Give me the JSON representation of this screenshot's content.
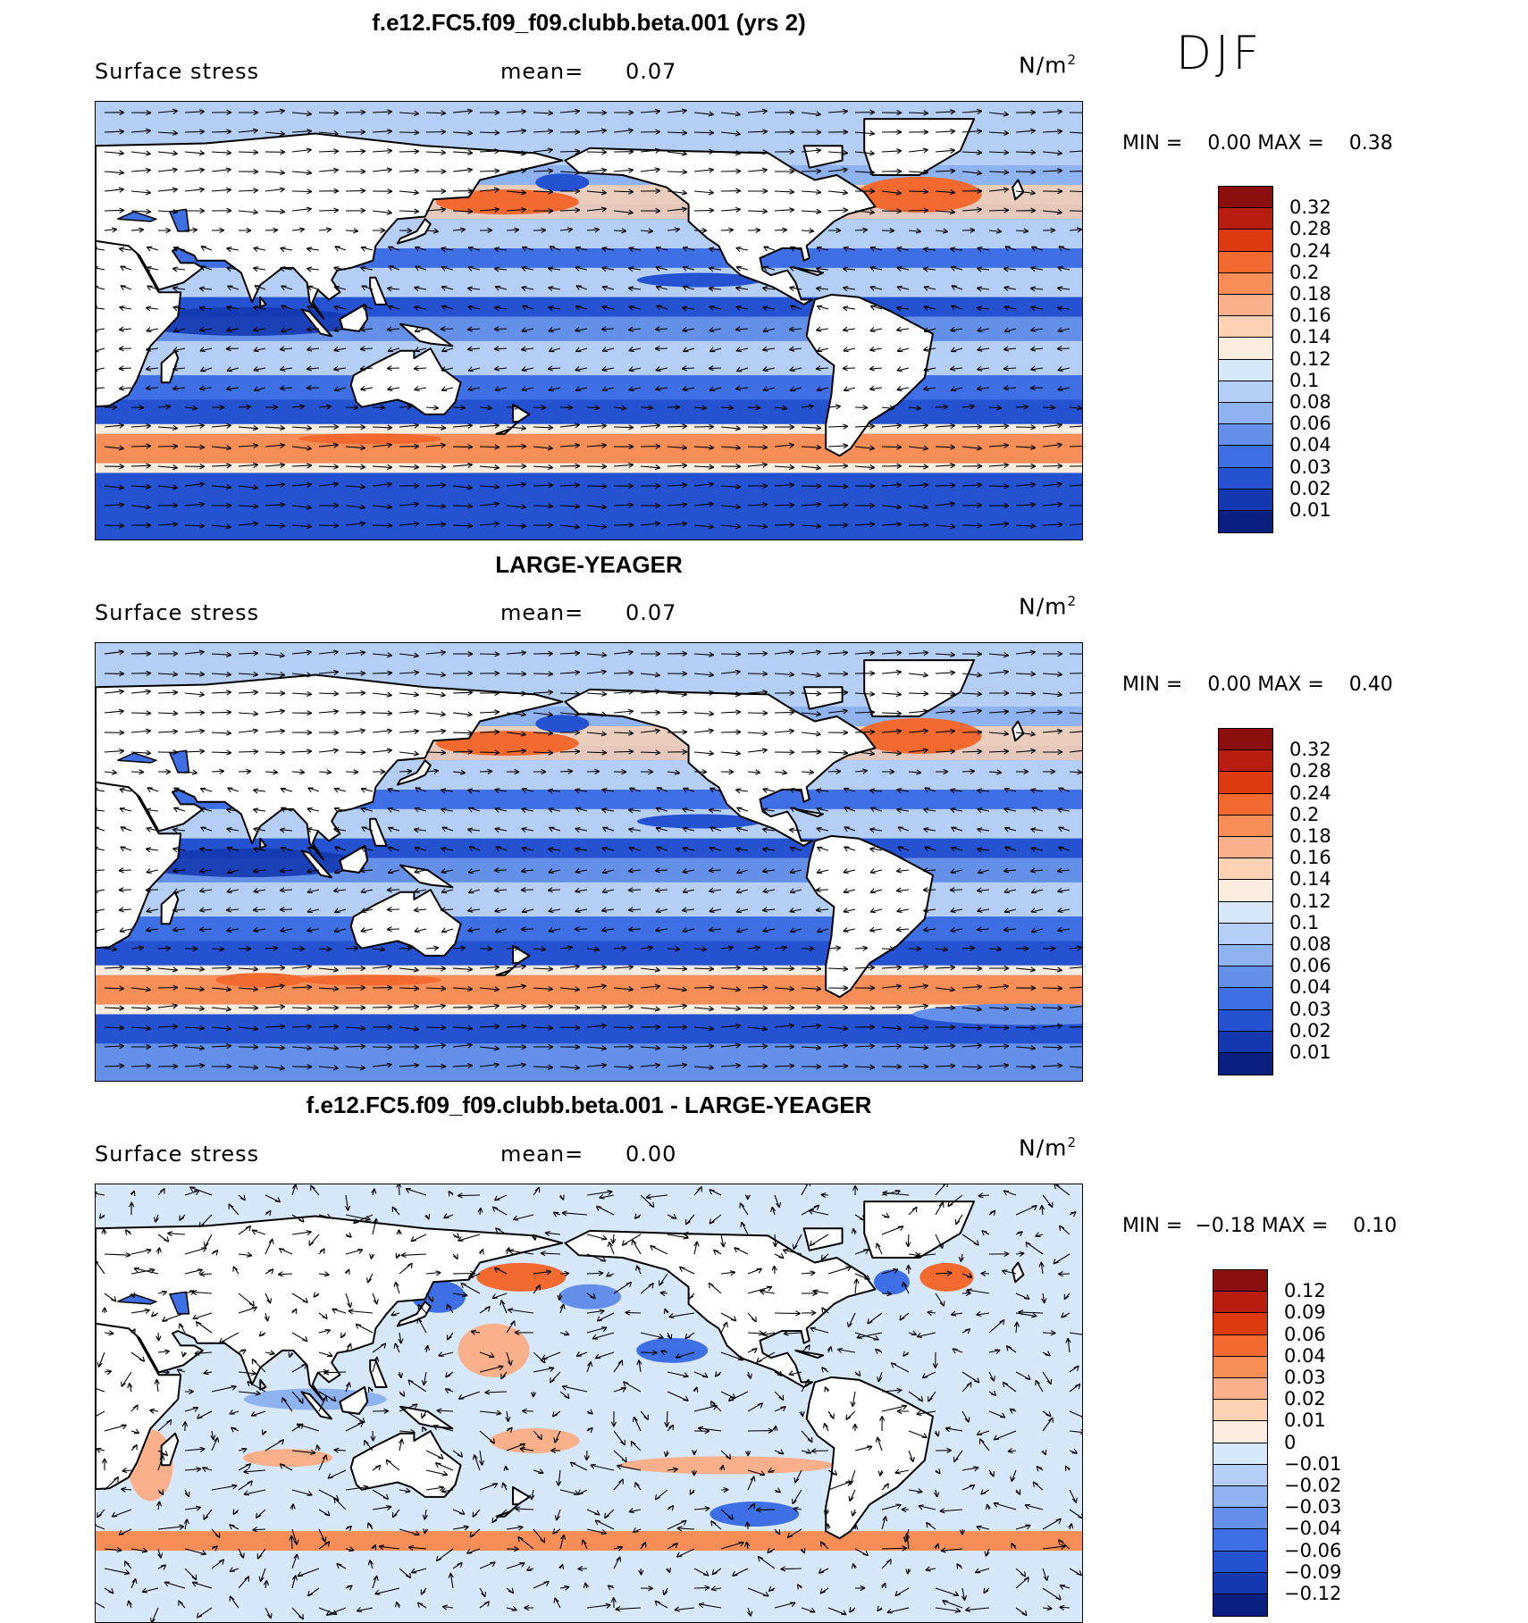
{
  "season": "DJF",
  "panels": [
    {
      "title": "f.e12.FC5.f09_f09.clubb.beta.001 (yrs 2)",
      "variable": "Surface stress",
      "mean_label": "mean=",
      "mean_value": "0.07",
      "units": "N/m",
      "units_sup": "2",
      "minmax": "MIN =    0.00 MAX =    0.38",
      "colorbar_levels": [
        "0.32",
        "0.28",
        "0.24",
        "0.2",
        "0.18",
        "0.16",
        "0.14",
        "0.12",
        "0.1",
        "0.08",
        "0.06",
        "0.04",
        "0.03",
        "0.02",
        "0.01"
      ],
      "colorbar_colors": [
        "#8b0f0f",
        "#b81e10",
        "#de3a10",
        "#f26a30",
        "#f78e58",
        "#fab08a",
        "#fcd1b4",
        "#fbece0",
        "#d8e8fb",
        "#b4cef6",
        "#8fb2f0",
        "#6490ea",
        "#3f6fe4",
        "#2452d0",
        "#1438b0",
        "#0a2080"
      ]
    },
    {
      "title": "LARGE-YEAGER",
      "variable": "Surface stress",
      "mean_label": "mean=",
      "mean_value": "0.07",
      "units": "N/m",
      "units_sup": "2",
      "minmax": "MIN =    0.00 MAX =    0.40",
      "colorbar_levels": [
        "0.32",
        "0.28",
        "0.24",
        "0.2",
        "0.18",
        "0.16",
        "0.14",
        "0.12",
        "0.1",
        "0.08",
        "0.06",
        "0.04",
        "0.03",
        "0.02",
        "0.01"
      ],
      "colorbar_colors": [
        "#8b0f0f",
        "#b81e10",
        "#de3a10",
        "#f26a30",
        "#f78e58",
        "#fab08a",
        "#fcd1b4",
        "#fbece0",
        "#d8e8fb",
        "#b4cef6",
        "#8fb2f0",
        "#6490ea",
        "#3f6fe4",
        "#2452d0",
        "#1438b0",
        "#0a2080"
      ]
    },
    {
      "title": "f.e12.FC5.f09_f09.clubb.beta.001 - LARGE-YEAGER",
      "variable": "Surface stress",
      "mean_label": "mean=",
      "mean_value": "0.00",
      "units": "N/m",
      "units_sup": "2",
      "minmax": "MIN =  −0.18 MAX =    0.10",
      "colorbar_levels": [
        "0.12",
        "0.09",
        "0.06",
        "0.04",
        "0.03",
        "0.02",
        "0.01",
        "0",
        "−0.01",
        "−0.02",
        "−0.03",
        "−0.04",
        "−0.06",
        "−0.09",
        "−0.12"
      ],
      "colorbar_colors": [
        "#8b0f0f",
        "#b81e10",
        "#de3a10",
        "#f26a30",
        "#f78e58",
        "#fab08a",
        "#fcd1b4",
        "#fbece0",
        "#d8e8fb",
        "#b4cef6",
        "#8fb2f0",
        "#6490ea",
        "#3f6fe4",
        "#2452d0",
        "#1438b0",
        "#0a2080"
      ]
    }
  ],
  "chart_data": [
    {
      "type": "heatmap",
      "title": "f.e12.FC5.f09_f09.clubb.beta.001 (yrs 2)",
      "variable": "Surface stress",
      "units": "N/m2",
      "mean": 0.07,
      "min": 0.0,
      "max": 0.38,
      "levels": [
        0.01,
        0.02,
        0.03,
        0.04,
        0.06,
        0.08,
        0.1,
        0.12,
        0.14,
        0.16,
        0.18,
        0.2,
        0.24,
        0.28,
        0.32
      ],
      "season": "DJF"
    },
    {
      "type": "heatmap",
      "title": "LARGE-YEAGER",
      "variable": "Surface stress",
      "units": "N/m2",
      "mean": 0.07,
      "min": 0.0,
      "max": 0.4,
      "levels": [
        0.01,
        0.02,
        0.03,
        0.04,
        0.06,
        0.08,
        0.1,
        0.12,
        0.14,
        0.16,
        0.18,
        0.2,
        0.24,
        0.28,
        0.32
      ],
      "season": "DJF"
    },
    {
      "type": "heatmap",
      "title": "f.e12.FC5.f09_f09.clubb.beta.001 - LARGE-YEAGER",
      "variable": "Surface stress",
      "units": "N/m2",
      "mean": 0.0,
      "min": -0.18,
      "max": 0.1,
      "levels": [
        -0.12,
        -0.09,
        -0.06,
        -0.04,
        -0.03,
        -0.02,
        -0.01,
        0,
        0.01,
        0.02,
        0.03,
        0.04,
        0.06,
        0.09,
        0.12
      ],
      "season": "DJF"
    }
  ]
}
